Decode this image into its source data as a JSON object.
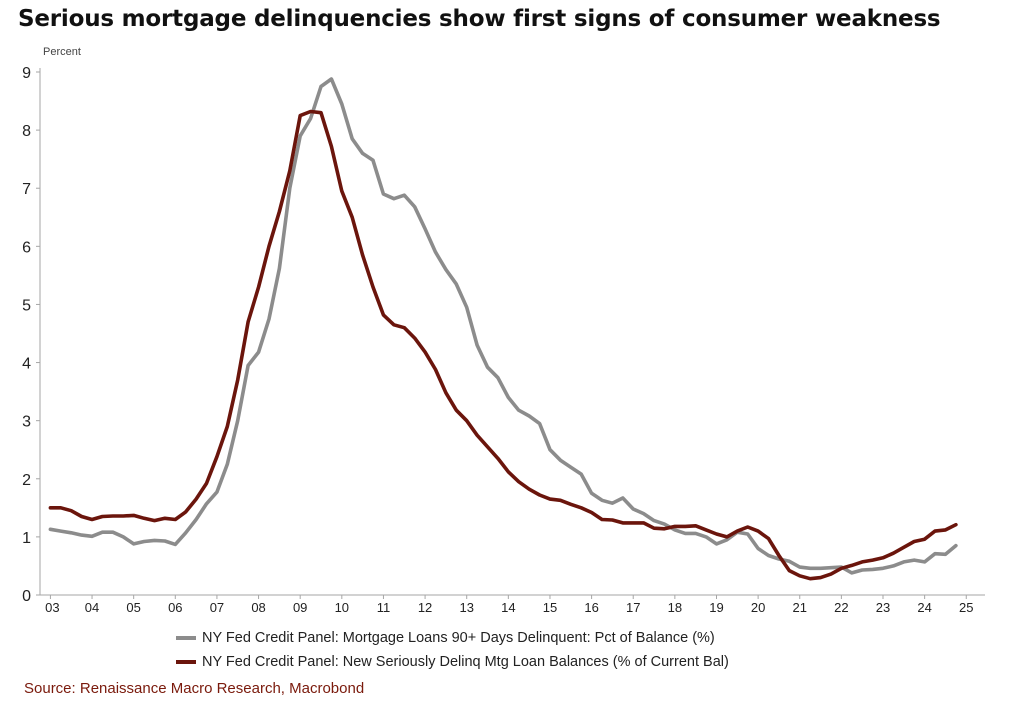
{
  "title": "Serious mortgage delinquencies show first signs of consumer weakness",
  "source": "Source: Renaissance Macro Research, Macrobond",
  "colors": {
    "series_gray": "#8c8c8c",
    "series_red": "#6b150c",
    "axis": "#a6a6a6",
    "text": "#222222"
  },
  "chart_data": {
    "type": "line",
    "ylabel": "Percent",
    "ylim": [
      0,
      9
    ],
    "yticks": [
      0,
      1,
      2,
      3,
      4,
      5,
      6,
      7,
      8,
      9
    ],
    "xlim": [
      2002.75,
      2025.45
    ],
    "xticks": [
      "03",
      "04",
      "05",
      "06",
      "07",
      "08",
      "09",
      "10",
      "11",
      "12",
      "13",
      "14",
      "15",
      "16",
      "17",
      "18",
      "19",
      "20",
      "21",
      "22",
      "23",
      "24",
      "25"
    ],
    "grid": false,
    "legend_position": "bottom",
    "series": [
      {
        "name": "NY Fed Credit Panel: Mortgage Loans 90+ Days Delinquent: Pct of Balance (%)",
        "color": "#8c8c8c",
        "points": [
          [
            2003.0,
            1.13
          ],
          [
            2003.25,
            1.1
          ],
          [
            2003.5,
            1.07
          ],
          [
            2003.75,
            1.03
          ],
          [
            2004.0,
            1.01
          ],
          [
            2004.25,
            1.08
          ],
          [
            2004.5,
            1.08
          ],
          [
            2004.75,
            1.0
          ],
          [
            2005.0,
            0.88
          ],
          [
            2005.25,
            0.92
          ],
          [
            2005.5,
            0.94
          ],
          [
            2005.75,
            0.93
          ],
          [
            2006.0,
            0.87
          ],
          [
            2006.25,
            1.07
          ],
          [
            2006.5,
            1.3
          ],
          [
            2006.75,
            1.57
          ],
          [
            2007.0,
            1.77
          ],
          [
            2007.25,
            2.25
          ],
          [
            2007.5,
            3.0
          ],
          [
            2007.75,
            3.95
          ],
          [
            2008.0,
            4.18
          ],
          [
            2008.25,
            4.75
          ],
          [
            2008.5,
            5.62
          ],
          [
            2008.75,
            7.0
          ],
          [
            2009.0,
            7.9
          ],
          [
            2009.25,
            8.2
          ],
          [
            2009.5,
            8.75
          ],
          [
            2009.75,
            8.88
          ],
          [
            2010.0,
            8.45
          ],
          [
            2010.25,
            7.85
          ],
          [
            2010.5,
            7.6
          ],
          [
            2010.75,
            7.48
          ],
          [
            2011.0,
            6.9
          ],
          [
            2011.25,
            6.82
          ],
          [
            2011.5,
            6.88
          ],
          [
            2011.75,
            6.68
          ],
          [
            2012.0,
            6.3
          ],
          [
            2012.25,
            5.9
          ],
          [
            2012.5,
            5.6
          ],
          [
            2012.75,
            5.35
          ],
          [
            2013.0,
            4.95
          ],
          [
            2013.25,
            4.3
          ],
          [
            2013.5,
            3.92
          ],
          [
            2013.75,
            3.74
          ],
          [
            2014.0,
            3.4
          ],
          [
            2014.25,
            3.18
          ],
          [
            2014.5,
            3.08
          ],
          [
            2014.75,
            2.95
          ],
          [
            2015.0,
            2.5
          ],
          [
            2015.25,
            2.32
          ],
          [
            2015.5,
            2.2
          ],
          [
            2015.75,
            2.08
          ],
          [
            2016.0,
            1.75
          ],
          [
            2016.25,
            1.63
          ],
          [
            2016.5,
            1.58
          ],
          [
            2016.75,
            1.67
          ],
          [
            2017.0,
            1.48
          ],
          [
            2017.25,
            1.4
          ],
          [
            2017.5,
            1.28
          ],
          [
            2017.75,
            1.22
          ],
          [
            2018.0,
            1.12
          ],
          [
            2018.25,
            1.06
          ],
          [
            2018.5,
            1.06
          ],
          [
            2018.75,
            1.0
          ],
          [
            2019.0,
            0.88
          ],
          [
            2019.25,
            0.95
          ],
          [
            2019.5,
            1.08
          ],
          [
            2019.75,
            1.05
          ],
          [
            2020.0,
            0.8
          ],
          [
            2020.25,
            0.68
          ],
          [
            2020.5,
            0.62
          ],
          [
            2020.75,
            0.58
          ],
          [
            2021.0,
            0.48
          ],
          [
            2021.25,
            0.46
          ],
          [
            2021.5,
            0.46
          ],
          [
            2021.75,
            0.47
          ],
          [
            2022.0,
            0.48
          ],
          [
            2022.25,
            0.38
          ],
          [
            2022.5,
            0.43
          ],
          [
            2022.75,
            0.44
          ],
          [
            2023.0,
            0.46
          ],
          [
            2023.25,
            0.5
          ],
          [
            2023.5,
            0.57
          ],
          [
            2023.75,
            0.6
          ],
          [
            2024.0,
            0.57
          ],
          [
            2024.25,
            0.71
          ],
          [
            2024.5,
            0.7
          ],
          [
            2024.75,
            0.85
          ]
        ]
      },
      {
        "name": "NY Fed Credit Panel: New Seriously Delinq Mtg Loan Balances (% of Current Bal)",
        "color": "#6b150c",
        "points": [
          [
            2003.0,
            1.5
          ],
          [
            2003.25,
            1.5
          ],
          [
            2003.5,
            1.45
          ],
          [
            2003.75,
            1.35
          ],
          [
            2004.0,
            1.3
          ],
          [
            2004.25,
            1.35
          ],
          [
            2004.5,
            1.36
          ],
          [
            2004.75,
            1.36
          ],
          [
            2005.0,
            1.37
          ],
          [
            2005.25,
            1.32
          ],
          [
            2005.5,
            1.28
          ],
          [
            2005.75,
            1.32
          ],
          [
            2006.0,
            1.3
          ],
          [
            2006.25,
            1.43
          ],
          [
            2006.5,
            1.65
          ],
          [
            2006.75,
            1.92
          ],
          [
            2007.0,
            2.38
          ],
          [
            2007.25,
            2.9
          ],
          [
            2007.5,
            3.7
          ],
          [
            2007.75,
            4.7
          ],
          [
            2008.0,
            5.3
          ],
          [
            2008.25,
            6.0
          ],
          [
            2008.5,
            6.6
          ],
          [
            2008.75,
            7.3
          ],
          [
            2009.0,
            8.25
          ],
          [
            2009.25,
            8.32
          ],
          [
            2009.5,
            8.3
          ],
          [
            2009.75,
            7.72
          ],
          [
            2010.0,
            6.95
          ],
          [
            2010.25,
            6.5
          ],
          [
            2010.5,
            5.85
          ],
          [
            2010.75,
            5.3
          ],
          [
            2011.0,
            4.82
          ],
          [
            2011.25,
            4.65
          ],
          [
            2011.5,
            4.6
          ],
          [
            2011.75,
            4.42
          ],
          [
            2012.0,
            4.18
          ],
          [
            2012.25,
            3.88
          ],
          [
            2012.5,
            3.48
          ],
          [
            2012.75,
            3.18
          ],
          [
            2013.0,
            3.0
          ],
          [
            2013.25,
            2.75
          ],
          [
            2013.5,
            2.55
          ],
          [
            2013.75,
            2.35
          ],
          [
            2014.0,
            2.12
          ],
          [
            2014.25,
            1.95
          ],
          [
            2014.5,
            1.82
          ],
          [
            2014.75,
            1.72
          ],
          [
            2015.0,
            1.65
          ],
          [
            2015.25,
            1.63
          ],
          [
            2015.5,
            1.56
          ],
          [
            2015.75,
            1.5
          ],
          [
            2016.0,
            1.42
          ],
          [
            2016.25,
            1.3
          ],
          [
            2016.5,
            1.29
          ],
          [
            2016.75,
            1.24
          ],
          [
            2017.0,
            1.24
          ],
          [
            2017.25,
            1.24
          ],
          [
            2017.5,
            1.15
          ],
          [
            2017.75,
            1.14
          ],
          [
            2018.0,
            1.18
          ],
          [
            2018.25,
            1.18
          ],
          [
            2018.5,
            1.19
          ],
          [
            2018.75,
            1.12
          ],
          [
            2019.0,
            1.05
          ],
          [
            2019.25,
            1.0
          ],
          [
            2019.5,
            1.1
          ],
          [
            2019.75,
            1.17
          ],
          [
            2020.0,
            1.1
          ],
          [
            2020.25,
            0.97
          ],
          [
            2020.5,
            0.68
          ],
          [
            2020.75,
            0.42
          ],
          [
            2021.0,
            0.33
          ],
          [
            2021.25,
            0.28
          ],
          [
            2021.5,
            0.3
          ],
          [
            2021.75,
            0.36
          ],
          [
            2022.0,
            0.46
          ],
          [
            2022.25,
            0.51
          ],
          [
            2022.5,
            0.57
          ],
          [
            2022.75,
            0.6
          ],
          [
            2023.0,
            0.64
          ],
          [
            2023.25,
            0.72
          ],
          [
            2023.5,
            0.82
          ],
          [
            2023.75,
            0.92
          ],
          [
            2024.0,
            0.96
          ],
          [
            2024.25,
            1.1
          ],
          [
            2024.5,
            1.12
          ],
          [
            2024.75,
            1.21
          ]
        ]
      }
    ]
  }
}
